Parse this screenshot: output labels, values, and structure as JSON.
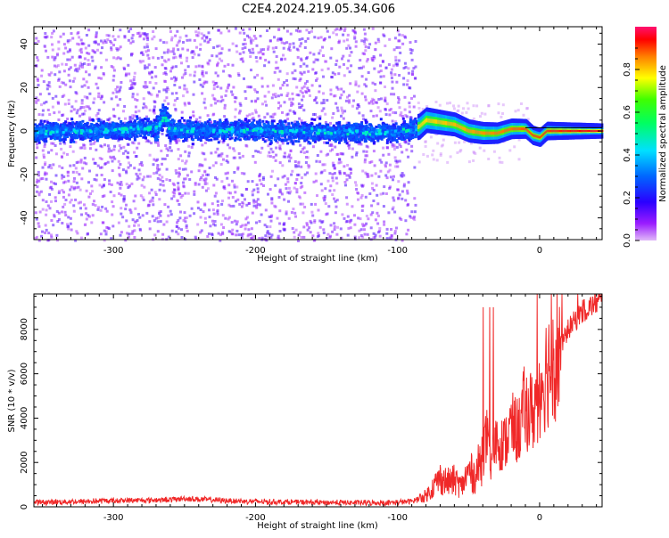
{
  "title": "C2E4.2024.219.05.34.G06",
  "chart_data": [
    {
      "type": "heatmap",
      "xlabel": "Height of straight line (km)",
      "ylabel": "Frequency (Hz)",
      "xlim": [
        -356,
        44
      ],
      "ylim": [
        -50,
        48
      ],
      "xticks": [
        -300,
        -200,
        -100,
        0
      ],
      "yticks": [
        -40,
        -20,
        0,
        20,
        40
      ],
      "grid": false,
      "colorbar": {
        "label": "Normalized spectral amplitude",
        "range": [
          0,
          1
        ],
        "ticks": [
          0.0,
          0.2,
          0.4,
          0.6,
          0.8
        ],
        "tick_labels": [
          "0.0",
          "0.2",
          "0.4",
          "0.6",
          "0.8"
        ],
        "colormap": "hsv-reversed"
      },
      "frequency_trace": {
        "x": [
          -356,
          -300,
          -270,
          -265,
          -260,
          -200,
          -150,
          -100,
          -85,
          -80,
          -70,
          -60,
          -50,
          -40,
          -30,
          -20,
          -10,
          -5,
          0,
          5,
          10,
          20,
          30,
          44
        ],
        "y": [
          0,
          1,
          2,
          8,
          1,
          1,
          0,
          0,
          2,
          5,
          4,
          3,
          0,
          -1,
          -1,
          1,
          1,
          -2,
          -3,
          0,
          0,
          0,
          0,
          0
        ]
      }
    },
    {
      "type": "line",
      "xlabel": "Height of straight line (km)",
      "ylabel": "SNR (10 * v/v)",
      "xlim": [
        -356,
        44
      ],
      "ylim": [
        0,
        9600
      ],
      "xticks": [
        -300,
        -200,
        -100,
        0
      ],
      "yticks": [
        0,
        2000,
        4000,
        6000,
        8000
      ],
      "grid": false,
      "series": [
        {
          "color": "#f02828",
          "x": [
            -356,
            -340,
            -320,
            -300,
            -280,
            -260,
            -250,
            -240,
            -220,
            -200,
            -180,
            -160,
            -140,
            -120,
            -100,
            -90,
            -80,
            -75,
            -70,
            -65,
            -60,
            -55,
            -50,
            -45,
            -40,
            -37,
            -35,
            -30,
            -25,
            -20,
            -15,
            -10,
            -5,
            0,
            5,
            10,
            15,
            20,
            25,
            30,
            35,
            40,
            44
          ],
          "y": [
            200,
            220,
            240,
            280,
            300,
            320,
            380,
            340,
            280,
            240,
            220,
            200,
            190,
            180,
            200,
            250,
            500,
            900,
            1300,
            1100,
            1200,
            900,
            1600,
            1400,
            2400,
            3200,
            1800,
            3000,
            2800,
            3600,
            3400,
            4600,
            4200,
            5400,
            6200,
            6800,
            7200,
            8000,
            8400,
            8800,
            9000,
            9200,
            9300
          ]
        }
      ]
    }
  ]
}
